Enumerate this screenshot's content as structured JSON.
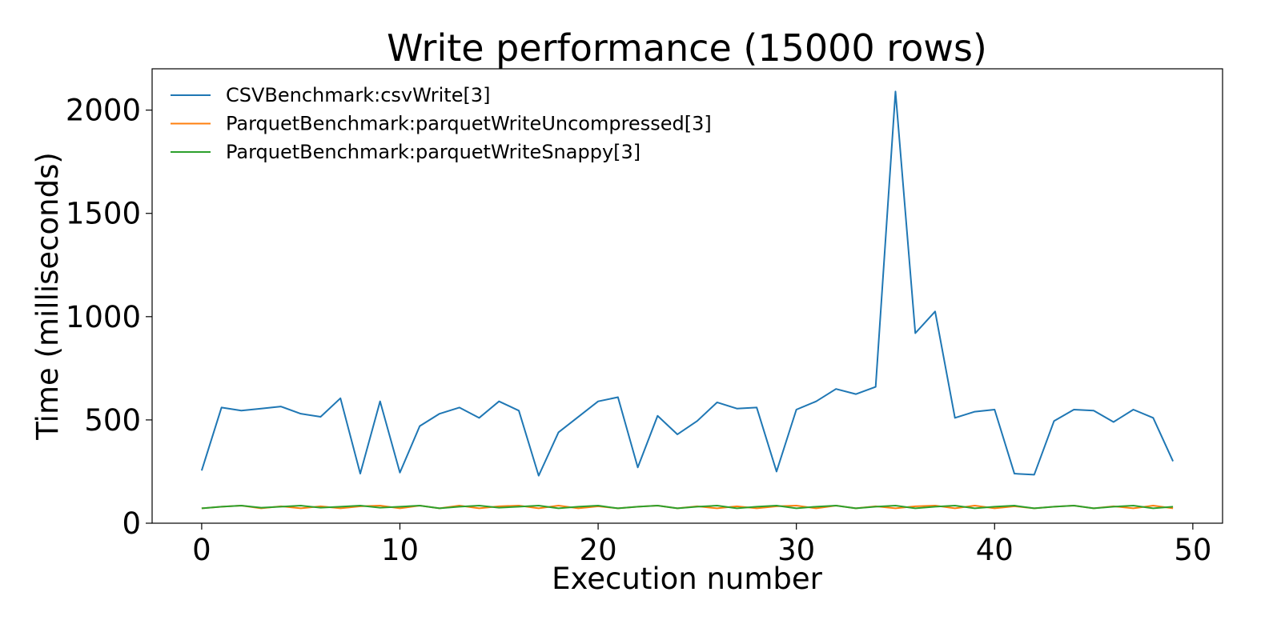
{
  "chart_data": {
    "type": "line",
    "title": "Write performance (15000 rows)",
    "xlabel": "Execution number",
    "ylabel": "Time (milliseconds)",
    "xlim": [
      -2.5,
      51.5
    ],
    "ylim": [
      0,
      2200
    ],
    "xticks": [
      0,
      10,
      20,
      30,
      40,
      50
    ],
    "yticks": [
      0,
      500,
      1000,
      1500,
      2000
    ],
    "grid": false,
    "legend_position": "upper-left",
    "x": [
      0,
      1,
      2,
      3,
      4,
      5,
      6,
      7,
      8,
      9,
      10,
      11,
      12,
      13,
      14,
      15,
      16,
      17,
      18,
      19,
      20,
      21,
      22,
      23,
      24,
      25,
      26,
      27,
      28,
      29,
      30,
      31,
      32,
      33,
      34,
      35,
      36,
      37,
      38,
      39,
      40,
      41,
      42,
      43,
      44,
      45,
      46,
      47,
      48,
      49
    ],
    "series": [
      {
        "name": "CSVBenchmark:csvWrite[3]",
        "color": "#1f77b4",
        "values": [
          255,
          560,
          545,
          555,
          565,
          530,
          515,
          605,
          240,
          590,
          245,
          470,
          530,
          560,
          510,
          590,
          545,
          230,
          440,
          515,
          590,
          610,
          270,
          520,
          430,
          495,
          585,
          555,
          560,
          250,
          550,
          590,
          650,
          625,
          660,
          2090,
          920,
          1025,
          510,
          540,
          550,
          240,
          235,
          495,
          550,
          545,
          490,
          550,
          510,
          300
        ]
      },
      {
        "name": "ParquetBenchmark:parquetWriteUncompressed[3]",
        "color": "#ff7f0e",
        "values": [
          72,
          80,
          85,
          72,
          82,
          72,
          82,
          72,
          82,
          85,
          72,
          85,
          72,
          85,
          72,
          82,
          85,
          72,
          85,
          72,
          82,
          72,
          80,
          85,
          72,
          82,
          72,
          82,
          72,
          82,
          85,
          72,
          85,
          72,
          82,
          72,
          82,
          85,
          72,
          85,
          72,
          82,
          72,
          80,
          85,
          72,
          82,
          72,
          85,
          72
        ]
      },
      {
        "name": "ParquetBenchmark:parquetWriteSnappy[3]",
        "color": "#2ca02c",
        "values": [
          72,
          80,
          85,
          75,
          80,
          85,
          75,
          80,
          85,
          75,
          80,
          85,
          72,
          80,
          85,
          75,
          80,
          85,
          72,
          80,
          85,
          72,
          80,
          85,
          72,
          80,
          85,
          72,
          80,
          85,
          72,
          80,
          85,
          72,
          80,
          85,
          72,
          80,
          85,
          72,
          80,
          85,
          72,
          80,
          85,
          72,
          80,
          85,
          72,
          80
        ]
      }
    ]
  }
}
